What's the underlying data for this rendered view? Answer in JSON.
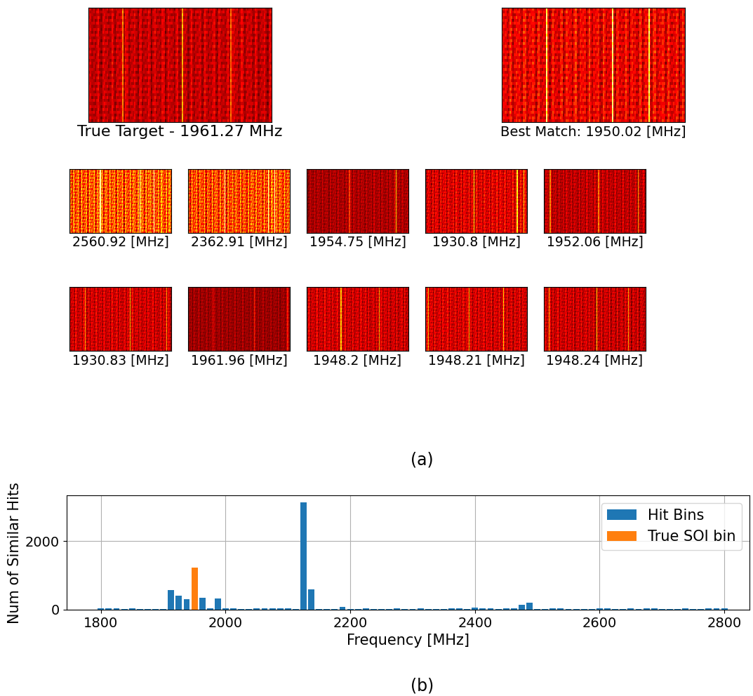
{
  "image_grid": {
    "target_caption": "True Target - 1961.27 MHz",
    "best_match_caption": "Best Match: 1950.02 [MHz]",
    "captions": [
      [
        "2560.92 [MHz]",
        "2362.91 [MHz]",
        "1954.75 [MHz]",
        "1930.8 [MHz]",
        "1952.06 [MHz]"
      ],
      [
        "1930.83 [MHz]",
        "1961.96 [MHz]",
        "1948.2 [MHz]",
        "1948.21 [MHz]",
        "1948.24 [MHz]"
      ]
    ],
    "panel_label": "(a)"
  },
  "chart_data": {
    "type": "bar",
    "panel_label": "(b)",
    "x_label": "Frequency [MHz]",
    "y_label": "Num of Similar Hits",
    "x": [
      1800,
      1812.5,
      1825,
      1837.5,
      1850,
      1862.5,
      1875,
      1887.5,
      1900,
      1912.5,
      1925,
      1937.5,
      1950,
      1962.5,
      1975,
      1987.5,
      2000,
      2012.5,
      2025,
      2037.5,
      2050,
      2062.5,
      2075,
      2087.5,
      2100,
      2112.5,
      2125,
      2137.5,
      2150,
      2162.5,
      2175,
      2187.5,
      2200,
      2212.5,
      2225,
      2237.5,
      2250,
      2262.5,
      2275,
      2287.5,
      2300,
      2312.5,
      2325,
      2337.5,
      2350,
      2362.5,
      2375,
      2387.5,
      2400,
      2412.5,
      2425,
      2437.5,
      2450,
      2462.5,
      2475,
      2487.5,
      2500,
      2512.5,
      2525,
      2537.5,
      2550,
      2562.5,
      2575,
      2587.5,
      2600,
      2612.5,
      2625,
      2637.5,
      2650,
      2662.5,
      2675,
      2687.5,
      2700,
      2712.5,
      2725,
      2737.5,
      2750,
      2762.5,
      2775,
      2787.5,
      2800
    ],
    "series": [
      {
        "name": "Hit Bins",
        "color": "#1f77b4",
        "values": [
          40,
          40,
          40,
          25,
          40,
          25,
          20,
          15,
          15,
          570,
          410,
          300,
          null,
          350,
          50,
          320,
          40,
          35,
          20,
          20,
          35,
          35,
          35,
          35,
          40,
          20,
          3130,
          600,
          20,
          15,
          20,
          80,
          20,
          15,
          35,
          20,
          20,
          30,
          35,
          30,
          20,
          35,
          30,
          20,
          15,
          35,
          40,
          20,
          60,
          45,
          40,
          20,
          40,
          45,
          150,
          210,
          20,
          20,
          40,
          35,
          20,
          20,
          25,
          20,
          35,
          35,
          20,
          20,
          35,
          20,
          35,
          35,
          20,
          20,
          20,
          35,
          20,
          20,
          35,
          35,
          35
        ]
      },
      {
        "name": "True SOI bin",
        "color": "#ff7f0e",
        "values": [
          null,
          null,
          null,
          null,
          null,
          null,
          null,
          null,
          null,
          null,
          null,
          null,
          1230,
          null,
          null,
          null,
          null,
          null,
          null,
          null,
          null,
          null,
          null,
          null,
          null,
          null,
          null,
          null,
          null,
          null,
          null,
          null,
          null,
          null,
          null,
          null,
          null,
          null,
          null,
          null,
          null,
          null,
          null,
          null,
          null,
          null,
          null,
          null,
          null,
          null,
          null,
          null,
          null,
          null,
          null,
          null,
          null,
          null,
          null,
          null,
          null,
          null,
          null,
          null,
          null,
          null,
          null,
          null,
          null,
          null,
          null,
          null,
          null,
          null,
          null,
          null,
          null,
          null,
          null,
          null,
          null
        ]
      }
    ],
    "xlim": [
      1745,
      2840
    ],
    "xticks": [
      1800,
      2000,
      2200,
      2400,
      2600,
      2800
    ],
    "ylim": [
      0,
      3330
    ],
    "yticks": [
      0,
      2000
    ],
    "grid": true,
    "legend": "upper right"
  }
}
